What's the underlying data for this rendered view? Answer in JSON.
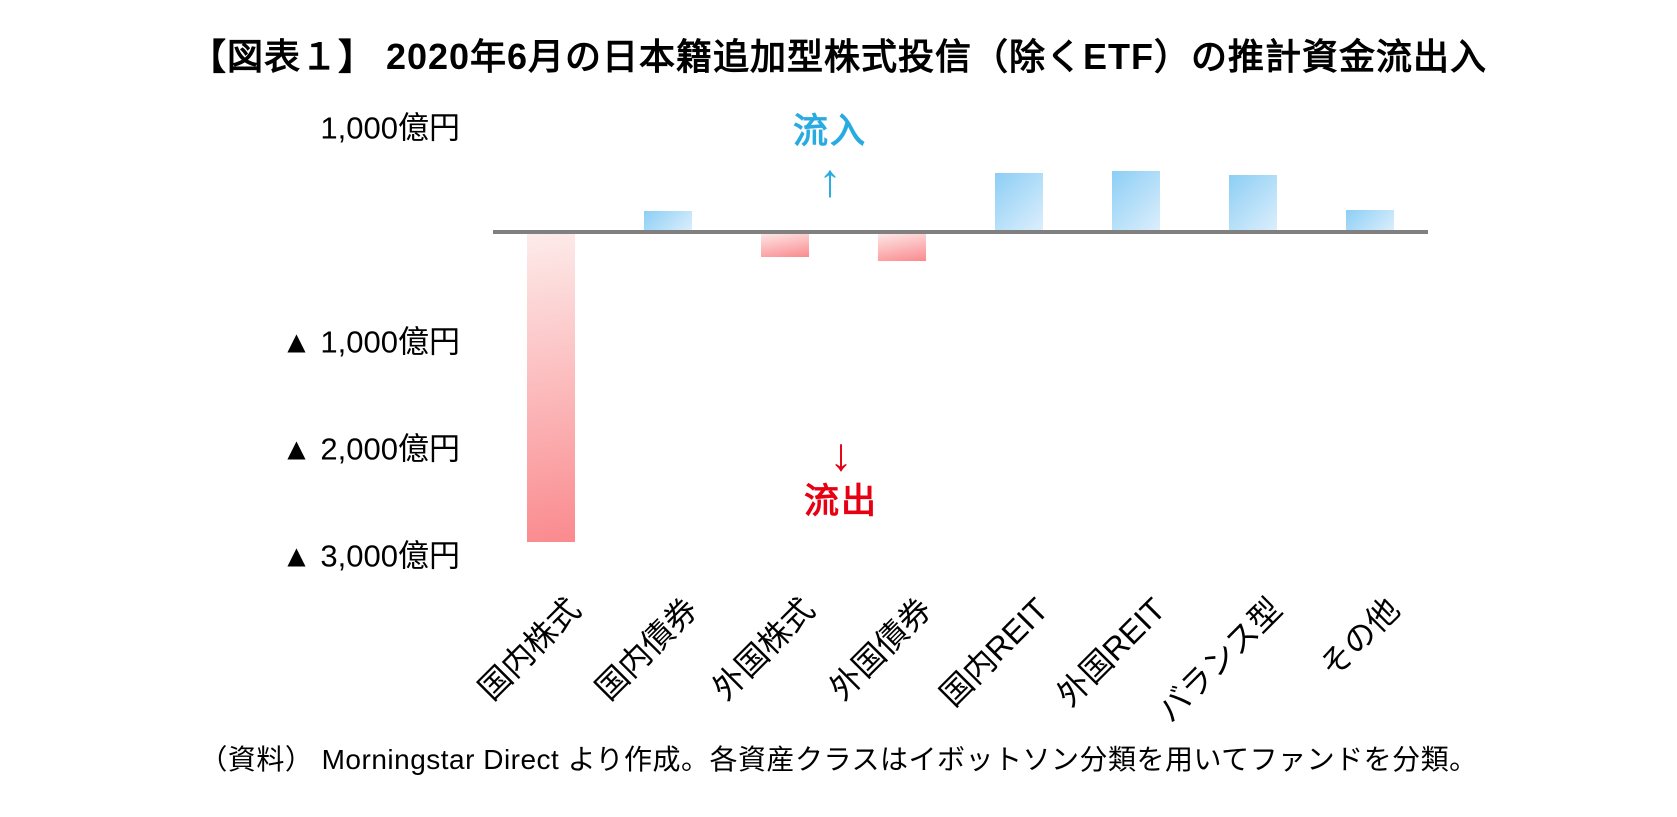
{
  "title": "【図表１】 2020年6月の日本籍追加型株式投信（除くETF）の推計資金流出入",
  "footer": {
    "source_note": "（資料） Morningstar Direct より作成。各資産クラスはイボットソン分類を用いてファンドを分類。"
  },
  "annotations": {
    "inflow": {
      "label": "流入",
      "arrow": "↑",
      "color": "#29abe2"
    },
    "outflow": {
      "label": "流出",
      "arrow": "↓",
      "color": "#e60012"
    }
  },
  "chart_data": {
    "type": "bar",
    "title": "【図表１】 2020年6月の日本籍追加型株式投信（除くETF）の推計資金流出入",
    "unit": "億円",
    "categories": [
      "国内株式",
      "国内債券",
      "外国株式",
      "外国債券",
      "国内REIT",
      "外国REIT",
      "バランス型",
      "その他"
    ],
    "category_slugs": [
      "domestic-equity",
      "domestic-bond",
      "foreign-equity",
      "foreign-bond",
      "domestic-reit",
      "foreign-reit",
      "balanced",
      "other"
    ],
    "values": [
      -2900,
      200,
      -230,
      -270,
      550,
      570,
      530,
      210
    ],
    "y_ticks": [
      {
        "label": "1,000億円",
        "value": 1000
      },
      {
        "label": "▲ 1,000億円",
        "value": -1000
      },
      {
        "label": "▲ 2,000億円",
        "value": -2000
      },
      {
        "label": "▲ 3,000億円",
        "value": -3000
      }
    ],
    "ylim": [
      -3200,
      1100
    ],
    "grid": false,
    "legend": false,
    "positive_color_top": "#8ccef5",
    "positive_color_bottom": "#ddeffc",
    "negative_color_top": "#fdeceb",
    "negative_color_bottom": "#fa8a8e",
    "axis_color": "#808080"
  }
}
